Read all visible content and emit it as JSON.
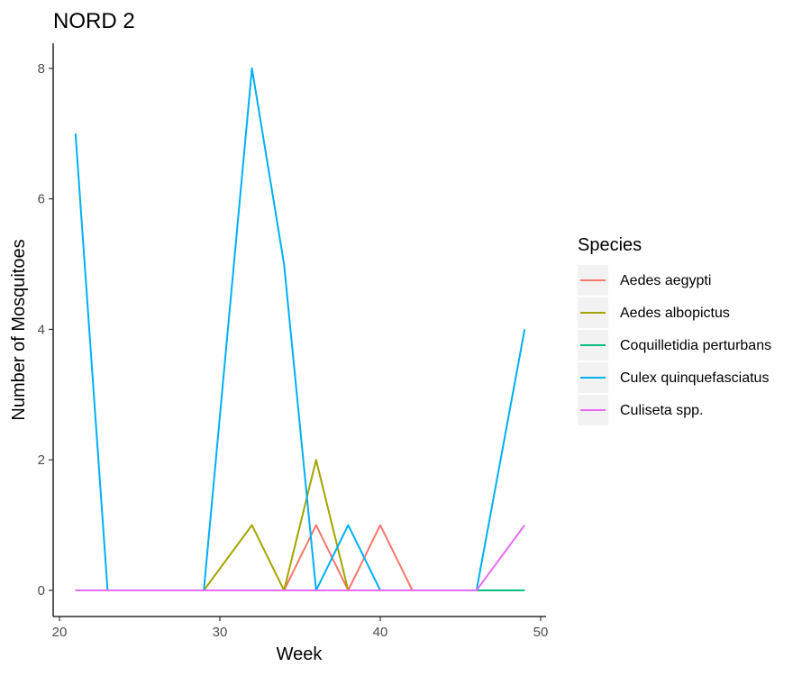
{
  "chart_data": {
    "type": "line",
    "title": "NORD 2",
    "xlabel": "Week",
    "ylabel": "Number of Mosquitoes",
    "xlim": [
      20,
      50
    ],
    "ylim": [
      0,
      8
    ],
    "xticks": [
      20,
      30,
      40,
      50
    ],
    "yticks": [
      0,
      2,
      4,
      6,
      8
    ],
    "grid": false,
    "legend": {
      "title": "Species",
      "position": "right"
    },
    "x": [
      21,
      23,
      29,
      32,
      34,
      36,
      38,
      40,
      42,
      46,
      49
    ],
    "series": [
      {
        "name": "Aedes aegypti",
        "color": "#F8766D",
        "values": [
          0,
          0,
          0,
          0,
          0,
          1,
          0,
          1,
          0,
          0,
          0
        ]
      },
      {
        "name": "Aedes albopictus",
        "color": "#A3A500",
        "values": [
          0,
          0,
          0,
          1,
          0,
          2,
          0,
          0,
          0,
          0,
          0
        ]
      },
      {
        "name": "Coquilletidia perturbans",
        "color": "#00BF7D",
        "values": [
          0,
          0,
          0,
          0,
          0,
          0,
          0,
          0,
          0,
          0,
          0
        ]
      },
      {
        "name": "Culex quinquefasciatus",
        "color": "#00B0F6",
        "values": [
          7,
          0,
          0,
          8,
          5,
          0,
          1,
          0,
          0,
          0,
          4
        ]
      },
      {
        "name": "Culiseta spp.",
        "color": "#E76BF3",
        "values": [
          0,
          0,
          0,
          0,
          0,
          0,
          0,
          0,
          0,
          0,
          1
        ]
      }
    ]
  }
}
